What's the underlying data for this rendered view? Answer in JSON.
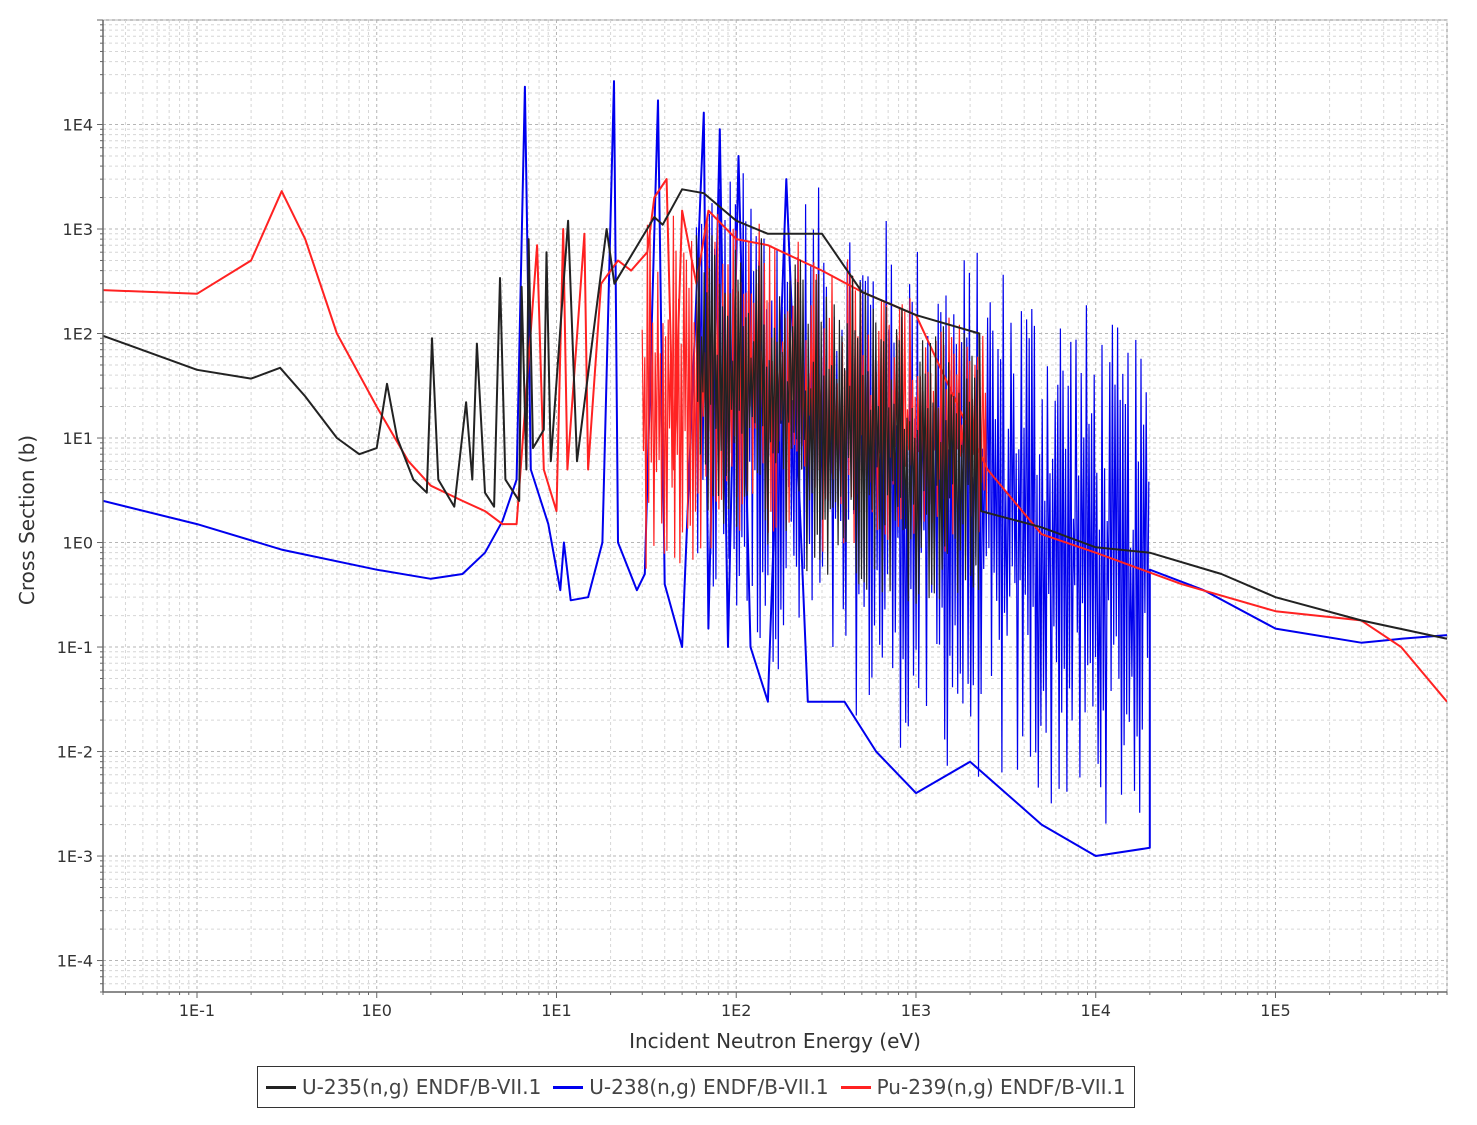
{
  "chart_data": {
    "type": "line",
    "xscale": "log",
    "yscale": "log",
    "xlabel": "Incident Neutron Energy (eV)",
    "ylabel": "Cross Section (b)",
    "xlim": [
      0.03,
      900000
    ],
    "ylim": [
      5e-05,
      100000
    ],
    "grid": true,
    "legend_position": "bottom",
    "x_ticks": [
      0.1,
      1,
      10,
      100,
      1000,
      10000,
      100000
    ],
    "x_tick_labels": [
      "1E-1",
      "1E0",
      "1E1",
      "1E2",
      "1E3",
      "1E4",
      "1E5"
    ],
    "y_ticks": [
      0.0001,
      0.001,
      0.01,
      0.1,
      1,
      10,
      100,
      1000,
      10000
    ],
    "y_tick_labels": [
      "1E-4",
      "1E-3",
      "1E-2",
      "1E-1",
      "1E0",
      "1E1",
      "1E2",
      "1E3",
      "1E4"
    ],
    "series": [
      {
        "name": "U-235(n,g) ENDF/B-VII.1",
        "color": "#222222",
        "points": [
          [
            0.03,
            95
          ],
          [
            0.1,
            45
          ],
          [
            0.2,
            37
          ],
          [
            0.29,
            47
          ],
          [
            0.4,
            25
          ],
          [
            0.6,
            10
          ],
          [
            0.8,
            7
          ],
          [
            1.0,
            8
          ],
          [
            1.14,
            33
          ],
          [
            1.3,
            10
          ],
          [
            1.6,
            4
          ],
          [
            1.9,
            3
          ],
          [
            2.03,
            90
          ],
          [
            2.2,
            4
          ],
          [
            2.7,
            2.2
          ],
          [
            3.14,
            22
          ],
          [
            3.4,
            4
          ],
          [
            3.61,
            80
          ],
          [
            4.0,
            3
          ],
          [
            4.5,
            2.2
          ],
          [
            4.85,
            340
          ],
          [
            5.2,
            4
          ],
          [
            6.2,
            2.5
          ],
          [
            6.4,
            280
          ],
          [
            6.8,
            5
          ],
          [
            7.0,
            800
          ],
          [
            7.4,
            8
          ],
          [
            8.5,
            12
          ],
          [
            8.8,
            600
          ],
          [
            9.3,
            6
          ],
          [
            11.6,
            1200
          ],
          [
            13,
            6
          ],
          [
            19,
            1000
          ],
          [
            21,
            300
          ],
          [
            35,
            1300
          ],
          [
            39,
            1100
          ],
          [
            50,
            2400
          ],
          [
            66,
            2200
          ],
          [
            100,
            1200
          ],
          [
            150,
            900
          ],
          [
            300,
            900
          ],
          [
            500,
            250
          ],
          [
            1000,
            150
          ],
          [
            2250,
            100
          ],
          [
            2300,
            2
          ],
          [
            5000,
            1.4
          ],
          [
            10000,
            0.9
          ],
          [
            20000,
            0.8
          ],
          [
            50000,
            0.5
          ],
          [
            100000,
            0.3
          ],
          [
            300000,
            0.18
          ],
          [
            900000,
            0.12
          ]
        ],
        "dense_band": {
          "x_range": [
            60,
            2250
          ],
          "upper": [
            [
              60,
              1200
            ],
            [
              200,
              800
            ],
            [
              500,
              400
            ],
            [
              1000,
              200
            ],
            [
              2250,
              120
            ]
          ],
          "lower": [
            [
              60,
              1.5
            ],
            [
              200,
              0.6
            ],
            [
              500,
              0.35
            ],
            [
              1000,
              0.25
            ],
            [
              2250,
              0.2
            ]
          ]
        }
      },
      {
        "name": "U-238(n,g) ENDF/B-VII.1",
        "color": "#0000ee",
        "points": [
          [
            0.03,
            2.5
          ],
          [
            0.1,
            1.5
          ],
          [
            0.3,
            0.85
          ],
          [
            1,
            0.55
          ],
          [
            2,
            0.45
          ],
          [
            3,
            0.5
          ],
          [
            4,
            0.8
          ],
          [
            5,
            1.6
          ],
          [
            6,
            4
          ],
          [
            6.67,
            23000
          ],
          [
            7.2,
            5
          ],
          [
            9,
            1.5
          ],
          [
            10.5,
            0.35
          ],
          [
            11,
            1
          ],
          [
            12,
            0.28
          ],
          [
            15,
            0.3
          ],
          [
            18,
            1
          ],
          [
            20.9,
            26000
          ],
          [
            22,
            1
          ],
          [
            28,
            0.35
          ],
          [
            31,
            0.5
          ],
          [
            36.7,
            17000
          ],
          [
            40,
            0.4
          ],
          [
            50,
            0.1
          ],
          [
            66,
            13000
          ],
          [
            70,
            0.15
          ],
          [
            81,
            9000
          ],
          [
            90,
            0.1
          ],
          [
            103,
            5000
          ],
          [
            120,
            0.1
          ],
          [
            150,
            0.03
          ],
          [
            190,
            3000
          ],
          [
            250,
            0.03
          ],
          [
            400,
            0.03
          ],
          [
            600,
            0.01
          ],
          [
            1000,
            0.004
          ],
          [
            2000,
            0.008
          ],
          [
            5000,
            0.002
          ],
          [
            10000,
            0.001
          ],
          [
            20000,
            0.0012
          ],
          [
            20000,
            0.55
          ],
          [
            40000,
            0.35
          ],
          [
            100000,
            0.15
          ],
          [
            300000,
            0.11
          ],
          [
            500000,
            0.12
          ],
          [
            900000,
            0.13
          ]
        ],
        "dense_band": {
          "x_range": [
            60,
            20000
          ],
          "upper": [
            [
              60,
              5000
            ],
            [
              200,
              3000
            ],
            [
              500,
              2000
            ],
            [
              1000,
              900
            ],
            [
              3000,
              600
            ],
            [
              8000,
              250
            ],
            [
              20000,
              70
            ]
          ],
          "lower": [
            [
              60,
              0.2
            ],
            [
              200,
              0.05
            ],
            [
              500,
              0.02
            ],
            [
              1000,
              0.008
            ],
            [
              3000,
              0.004
            ],
            [
              8000,
              0.002
            ],
            [
              20000,
              0.002
            ]
          ]
        }
      },
      {
        "name": "Pu-239(n,g) ENDF/B-VII.1",
        "color": "#ff2222",
        "points": [
          [
            0.03,
            260
          ],
          [
            0.1,
            240
          ],
          [
            0.2,
            500
          ],
          [
            0.296,
            2300
          ],
          [
            0.4,
            800
          ],
          [
            0.6,
            100
          ],
          [
            1,
            20
          ],
          [
            1.5,
            6
          ],
          [
            2,
            3.5
          ],
          [
            3,
            2.5
          ],
          [
            4,
            2
          ],
          [
            5,
            1.5
          ],
          [
            6,
            1.5
          ],
          [
            7.8,
            700
          ],
          [
            8.5,
            5
          ],
          [
            10,
            2
          ],
          [
            10.9,
            1000
          ],
          [
            11.5,
            5
          ],
          [
            14.3,
            900
          ],
          [
            15,
            5
          ],
          [
            17.7,
            300
          ],
          [
            22,
            500
          ],
          [
            26,
            400
          ],
          [
            32,
            600
          ],
          [
            35,
            2000
          ],
          [
            41,
            3000
          ],
          [
            45,
            5
          ],
          [
            50,
            1500
          ],
          [
            60,
            300
          ],
          [
            70,
            1500
          ],
          [
            100,
            800
          ],
          [
            150,
            700
          ],
          [
            300,
            400
          ],
          [
            500,
            250
          ],
          [
            1000,
            150
          ],
          [
            2500,
            5
          ],
          [
            5000,
            1.2
          ],
          [
            10000,
            0.8
          ],
          [
            30000,
            0.4
          ],
          [
            100000,
            0.22
          ],
          [
            300000,
            0.18
          ],
          [
            500000,
            0.1
          ],
          [
            900000,
            0.03
          ]
        ],
        "dense_band": {
          "x_range": [
            30,
            2500
          ],
          "upper": [
            [
              30,
              2000
            ],
            [
              100,
              1500
            ],
            [
              300,
              800
            ],
            [
              1000,
              200
            ],
            [
              2500,
              100
            ]
          ],
          "lower": [
            [
              30,
              0.5
            ],
            [
              100,
              0.8
            ],
            [
              300,
              0.8
            ],
            [
              1000,
              0.8
            ],
            [
              2500,
              0.8
            ]
          ]
        }
      }
    ]
  }
}
